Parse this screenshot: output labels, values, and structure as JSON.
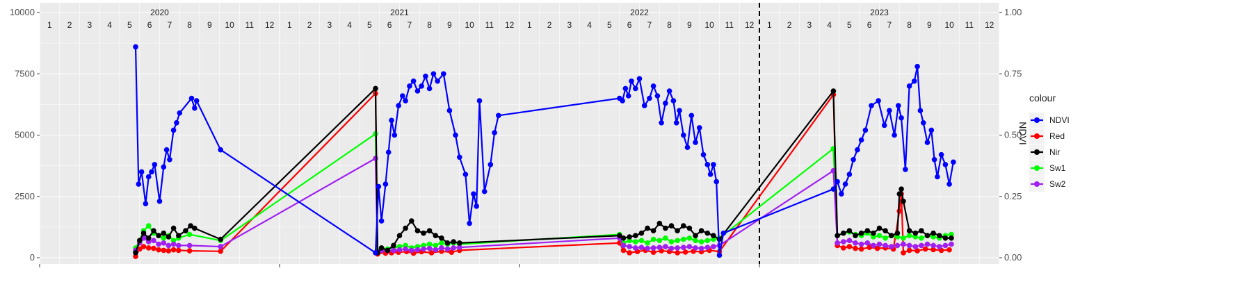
{
  "chart_data": {
    "type": "line",
    "title": "",
    "xlabel": "",
    "ylabel": "",
    "y2label": "NDVI",
    "ylim": [
      0,
      10000
    ],
    "y2lim": [
      0,
      1
    ],
    "yticks": [
      "0",
      "2500",
      "5000",
      "7500",
      "10000"
    ],
    "y2ticks": [
      "0.00",
      "0.25",
      "0.50",
      "0.75",
      "1.00"
    ],
    "years": [
      "2020",
      "2021",
      "2022",
      "2023"
    ],
    "months": [
      "1",
      "2",
      "3",
      "4",
      "5",
      "6",
      "7",
      "8",
      "9",
      "10",
      "11",
      "12"
    ],
    "divider_year": "2023",
    "grid": true,
    "legend_title": "colour",
    "legend_position": "right",
    "series": [
      {
        "name": "NDVI",
        "color": "#0000ff",
        "axis": "ndvi",
        "x": [
          4.8,
          4.95,
          5.1,
          5.3,
          5.45,
          5.6,
          5.75,
          6.0,
          6.2,
          6.35,
          6.5,
          6.7,
          6.85,
          7.0,
          7.6,
          7.75,
          7.85,
          9.05,
          16.8,
          16.95,
          17.1,
          17.3,
          17.45,
          17.6,
          17.75,
          17.95,
          18.15,
          18.3,
          18.5,
          18.7,
          18.9,
          19.1,
          19.3,
          19.5,
          19.7,
          19.9,
          20.2,
          20.5,
          20.8,
          21.0,
          21.3,
          21.5,
          21.7,
          21.85,
          22.0,
          22.25,
          22.55,
          22.75,
          22.95,
          29.0,
          29.15,
          29.3,
          29.45,
          29.6,
          29.8,
          30.0,
          30.25,
          30.5,
          30.7,
          30.9,
          31.1,
          31.3,
          31.5,
          31.7,
          31.85,
          32.0,
          32.2,
          32.4,
          32.6,
          32.8,
          33.0,
          33.2,
          33.4,
          33.55,
          33.7,
          33.85,
          34.0,
          34.2,
          39.7,
          39.9,
          40.1,
          40.3,
          40.5,
          40.7,
          40.9,
          41.1,
          41.3,
          41.6,
          41.95,
          42.25,
          42.5,
          42.75,
          42.95,
          43.1,
          43.3,
          43.5,
          43.75,
          43.9,
          44.05,
          44.2,
          44.4,
          44.6,
          44.75,
          44.9,
          45.1,
          45.3,
          45.5,
          45.7
        ],
        "y": [
          0.86,
          0.3,
          0.35,
          0.22,
          0.33,
          0.35,
          0.38,
          0.23,
          0.37,
          0.44,
          0.4,
          0.52,
          0.55,
          0.59,
          0.65,
          0.61,
          0.64,
          0.44,
          0.02,
          0.29,
          0.15,
          0.3,
          0.43,
          0.56,
          0.5,
          0.62,
          0.66,
          0.64,
          0.7,
          0.72,
          0.68,
          0.7,
          0.74,
          0.69,
          0.75,
          0.72,
          0.75,
          0.6,
          0.5,
          0.41,
          0.34,
          0.14,
          0.26,
          0.21,
          0.64,
          0.27,
          0.38,
          0.51,
          0.58,
          0.65,
          0.64,
          0.69,
          0.66,
          0.72,
          0.69,
          0.73,
          0.62,
          0.65,
          0.7,
          0.66,
          0.55,
          0.63,
          0.68,
          0.64,
          0.55,
          0.6,
          0.5,
          0.45,
          0.58,
          0.47,
          0.53,
          0.42,
          0.38,
          0.34,
          0.38,
          0.31,
          0.01,
          0.1,
          0.28,
          0.31,
          0.26,
          0.3,
          0.34,
          0.4,
          0.44,
          0.48,
          0.52,
          0.62,
          0.64,
          0.54,
          0.6,
          0.5,
          0.62,
          0.57,
          0.36,
          0.7,
          0.72,
          0.78,
          0.6,
          0.55,
          0.47,
          0.52,
          0.4,
          0.33,
          0.42,
          0.38,
          0.3,
          0.39
        ]
      },
      {
        "name": "Red",
        "color": "#ff0000",
        "axis": "value",
        "x": [
          4.8,
          5.0,
          5.2,
          5.45,
          5.7,
          5.95,
          6.2,
          6.45,
          6.7,
          6.95,
          7.5,
          9.05,
          16.8,
          16.9,
          17.05,
          17.3,
          17.6,
          17.95,
          18.35,
          18.7,
          19.1,
          19.6,
          20.1,
          20.6,
          21.0,
          29.0,
          29.2,
          29.5,
          29.9,
          30.3,
          30.7,
          31.1,
          31.5,
          31.9,
          32.3,
          32.7,
          33.1,
          33.5,
          34.0,
          39.7,
          39.9,
          40.2,
          40.5,
          40.8,
          41.1,
          41.5,
          41.9,
          42.3,
          42.7,
          43.0,
          43.1,
          43.2,
          43.5,
          43.9,
          44.3,
          44.7,
          45.1,
          45.5
        ],
        "y": [
          50,
          350,
          450,
          400,
          380,
          320,
          300,
          280,
          320,
          300,
          280,
          260,
          6700,
          150,
          250,
          180,
          200,
          220,
          250,
          180,
          240,
          200,
          260,
          220,
          300,
          600,
          300,
          200,
          250,
          300,
          220,
          280,
          250,
          200,
          230,
          260,
          240,
          300,
          250,
          6650,
          500,
          400,
          450,
          380,
          350,
          420,
          380,
          400,
          350,
          1900,
          2600,
          200,
          300,
          280,
          350,
          330,
          300,
          320
        ]
      },
      {
        "name": "Nir",
        "color": "#000000",
        "axis": "value",
        "x": [
          4.8,
          5.0,
          5.2,
          5.45,
          5.7,
          5.95,
          6.2,
          6.45,
          6.7,
          6.95,
          7.3,
          7.55,
          7.75,
          9.05,
          16.8,
          16.9,
          17.1,
          17.4,
          17.7,
          18.0,
          18.3,
          18.6,
          18.9,
          19.2,
          19.5,
          19.8,
          20.1,
          20.4,
          20.7,
          21.0,
          29.0,
          29.2,
          29.5,
          29.8,
          30.1,
          30.4,
          30.7,
          31.0,
          31.3,
          31.6,
          31.9,
          32.2,
          32.5,
          32.8,
          33.1,
          33.4,
          33.7,
          34.0,
          39.7,
          39.9,
          40.2,
          40.5,
          40.8,
          41.1,
          41.4,
          41.7,
          42.0,
          42.3,
          42.6,
          42.9,
          43.0,
          43.1,
          43.2,
          43.5,
          43.8,
          44.1,
          44.4,
          44.7,
          45.0,
          45.3,
          45.6
        ],
        "y": [
          200,
          700,
          1000,
          800,
          1100,
          900,
          1000,
          850,
          1200,
          900,
          1100,
          1300,
          1200,
          750,
          6900,
          200,
          400,
          300,
          500,
          900,
          1200,
          1500,
          1100,
          1000,
          1100,
          900,
          800,
          600,
          650,
          600,
          900,
          800,
          850,
          900,
          1000,
          1200,
          1100,
          1400,
          1200,
          1300,
          1100,
          1300,
          1200,
          900,
          1100,
          1000,
          900,
          750,
          6800,
          900,
          1000,
          1100,
          900,
          1000,
          1100,
          1000,
          1200,
          1100,
          900,
          1000,
          2600,
          2800,
          2300,
          1100,
          1000,
          1100,
          900,
          1000,
          900,
          800,
          800
        ]
      },
      {
        "name": "Sw1",
        "color": "#00ff00",
        "axis": "value",
        "x": [
          4.8,
          5.0,
          5.2,
          5.45,
          5.7,
          5.95,
          6.2,
          6.45,
          6.7,
          6.95,
          7.5,
          9.05,
          16.8,
          16.9,
          17.1,
          17.4,
          17.7,
          18.0,
          18.3,
          18.6,
          18.9,
          19.2,
          19.5,
          19.8,
          20.1,
          20.4,
          20.7,
          21.0,
          29.0,
          29.2,
          29.5,
          29.8,
          30.1,
          30.4,
          30.7,
          31.0,
          31.3,
          31.6,
          31.9,
          32.2,
          32.5,
          32.8,
          33.1,
          33.4,
          33.7,
          34.0,
          39.7,
          39.9,
          40.2,
          40.5,
          40.8,
          41.1,
          41.4,
          41.7,
          42.0,
          42.3,
          42.6,
          42.9,
          43.2,
          43.5,
          43.8,
          44.1,
          44.4,
          44.7,
          45.0,
          45.3,
          45.6
        ],
        "y": [
          400,
          700,
          1100,
          1300,
          1000,
          900,
          800,
          900,
          700,
          800,
          950,
          700,
          5050,
          300,
          400,
          350,
          400,
          450,
          500,
          400,
          450,
          500,
          550,
          500,
          600,
          550,
          600,
          550,
          950,
          600,
          700,
          650,
          700,
          600,
          750,
          700,
          800,
          650,
          700,
          750,
          800,
          700,
          650,
          700,
          750,
          800,
          4450,
          900,
          1000,
          1050,
          950,
          900,
          1000,
          850,
          900,
          800,
          900,
          850,
          800,
          900,
          850,
          800,
          900,
          850,
          800,
          900,
          950
        ]
      },
      {
        "name": "Sw2",
        "color": "#a020f0",
        "axis": "value",
        "x": [
          4.8,
          5.0,
          5.2,
          5.45,
          5.7,
          5.95,
          6.2,
          6.45,
          6.7,
          6.95,
          7.5,
          9.05,
          16.8,
          16.9,
          17.1,
          17.4,
          17.7,
          18.0,
          18.3,
          18.6,
          18.9,
          19.2,
          19.5,
          19.8,
          20.1,
          20.4,
          20.7,
          21.0,
          29.0,
          29.2,
          29.5,
          29.8,
          30.1,
          30.4,
          30.7,
          31.0,
          31.3,
          31.6,
          31.9,
          32.2,
          32.5,
          32.8,
          33.1,
          33.4,
          33.7,
          34.0,
          39.7,
          39.9,
          40.2,
          40.5,
          40.8,
          41.1,
          41.4,
          41.7,
          42.0,
          42.3,
          42.6,
          42.9,
          43.2,
          43.5,
          43.8,
          44.1,
          44.4,
          44.7,
          45.0,
          45.3,
          45.6
        ],
        "y": [
          300,
          600,
          800,
          650,
          700,
          550,
          600,
          500,
          550,
          500,
          500,
          450,
          4050,
          250,
          300,
          280,
          300,
          320,
          350,
          300,
          320,
          350,
          380,
          320,
          400,
          350,
          400,
          420,
          800,
          500,
          450,
          400,
          420,
          380,
          400,
          420,
          450,
          380,
          400,
          420,
          450,
          400,
          380,
          420,
          450,
          500,
          3550,
          600,
          650,
          700,
          600,
          550,
          600,
          500,
          550,
          500,
          450,
          500,
          550,
          500,
          450,
          500,
          550,
          500,
          450,
          500,
          550
        ]
      }
    ]
  }
}
